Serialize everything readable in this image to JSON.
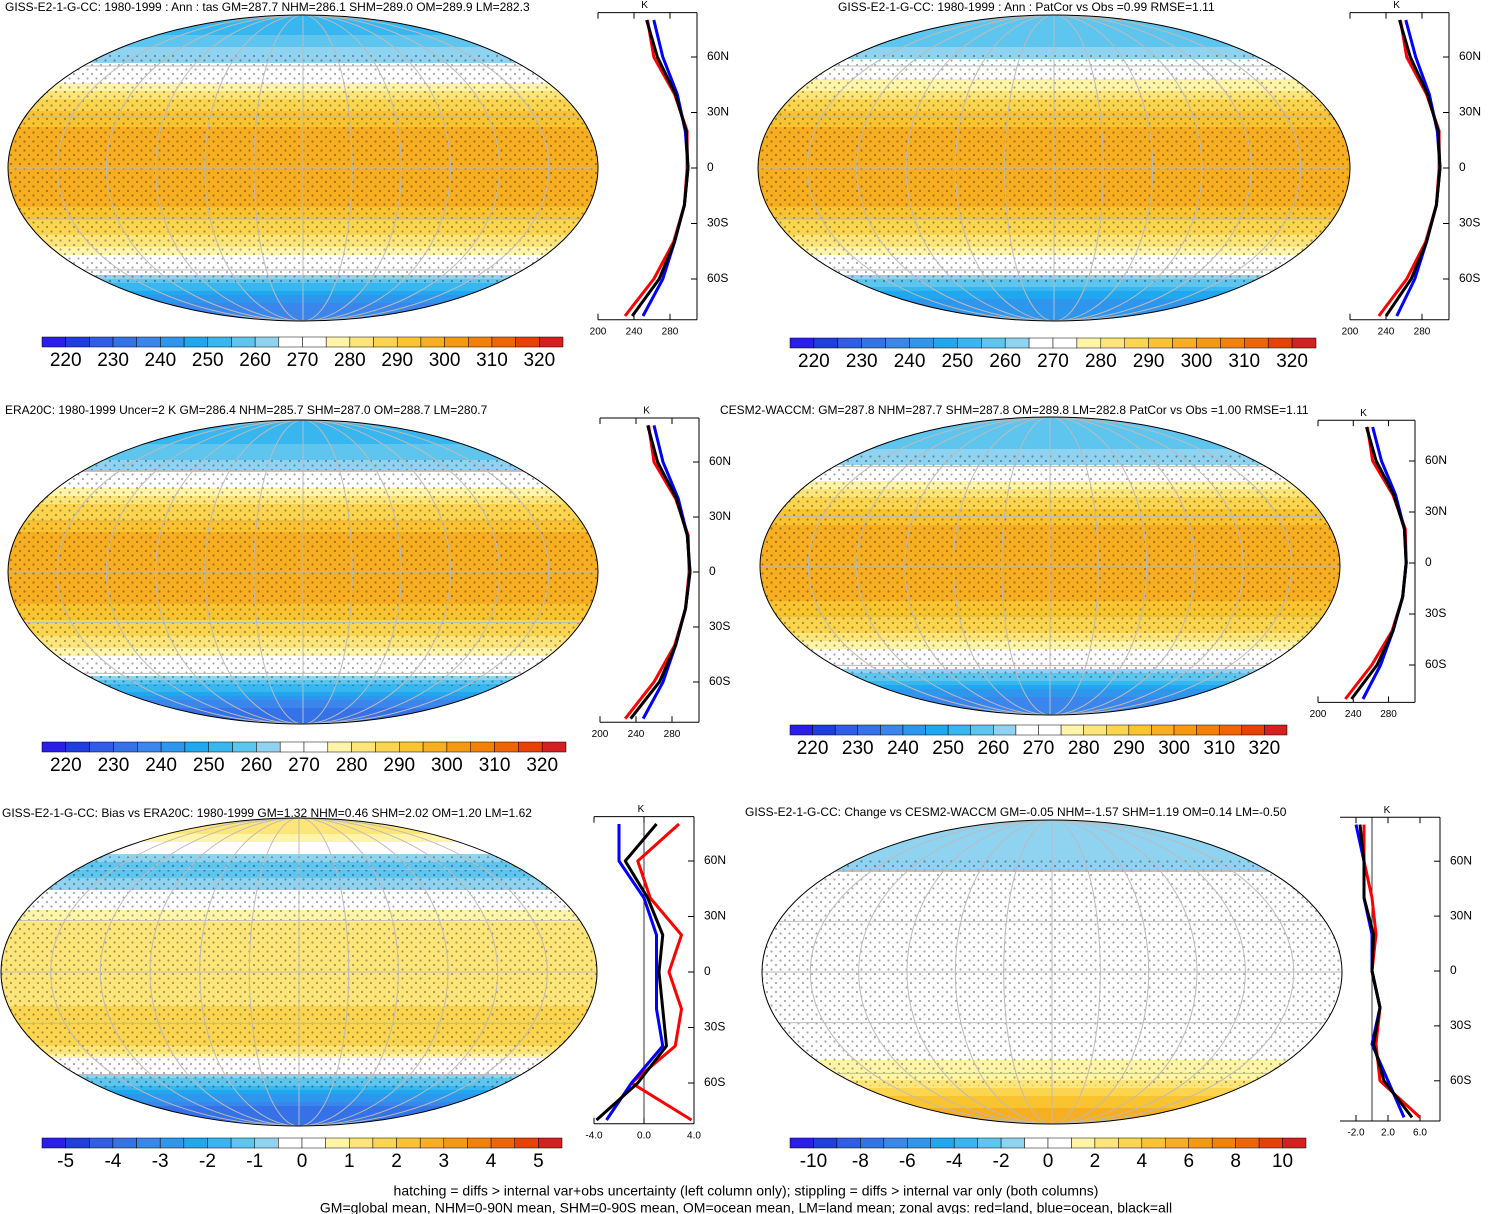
{
  "colormap": [
    "#2a1ee8",
    "#1f3ee0",
    "#2f5de8",
    "#3572e8",
    "#3b86ec",
    "#2f96ee",
    "#1fa8ef",
    "#37b6f0",
    "#5ec5ee",
    "#8fd3f0",
    "#ffffff",
    "#ffffff",
    "#fff4a8",
    "#fde57a",
    "#fbd54f",
    "#f9c430",
    "#f7ae20",
    "#f59a10",
    "#f38108",
    "#ef6504",
    "#e94003",
    "#d61f1f"
  ],
  "chart_data": [
    {
      "type": "map",
      "title": "GISS-E2-1-G-CC: 1980-1999 : Ann : tas GM=287.7 NHM=286.1 SHM=289.0 OM=289.9 LM=282.3",
      "colorbar": {
        "lim": [
          215,
          325
        ],
        "ticks": [
          220,
          230,
          240,
          250,
          260,
          270,
          280,
          290,
          300,
          310,
          320
        ]
      },
      "zonal": {
        "type": "line",
        "unit": "K",
        "y": [
          -80,
          -60,
          -40,
          -20,
          0,
          20,
          40,
          60,
          80
        ],
        "xlim": [
          200,
          310
        ],
        "xticks": [
          200,
          240,
          280
        ],
        "ylim": [
          -82,
          84
        ],
        "yticks": [
          {
            "value": 60,
            "label": "60N"
          },
          {
            "value": 30,
            "label": "30N"
          },
          0,
          {
            "value": -30,
            "label": "30S"
          },
          {
            "value": -60,
            "label": "60S"
          }
        ],
        "series": [
          {
            "color": "#ff0000",
            "values": [
              230,
              262,
              284,
              296,
              299,
              299,
              285,
              262,
              255
            ]
          },
          {
            "color": "#0000ff",
            "values": [
              250,
              272,
              285,
              296,
              300,
              297,
              288,
              272,
              262
            ]
          },
          {
            "color": "#000000",
            "values": [
              238,
              268,
              285,
              296,
              300,
              298,
              286,
              266,
              254
            ]
          }
        ]
      }
    },
    {
      "type": "map",
      "title": "GISS-E2-1-G-CC: 1980-1999 : Ann : PatCor vs Obs =0.99 RMSE=1.11",
      "colorbar": {
        "lim": [
          215,
          325
        ],
        "ticks": [
          220,
          230,
          240,
          250,
          260,
          270,
          280,
          290,
          300,
          310,
          320
        ]
      },
      "zonal": {
        "type": "line",
        "unit": "K",
        "y": [
          -80,
          -60,
          -40,
          -20,
          0,
          20,
          40,
          60,
          80
        ],
        "xlim": [
          200,
          310
        ],
        "xticks": [
          200,
          240,
          280
        ],
        "ylim": [
          -82,
          84
        ],
        "yticks": [
          {
            "value": 60,
            "label": "60N"
          },
          {
            "value": 30,
            "label": "30N"
          },
          0,
          {
            "value": -30,
            "label": "30S"
          },
          {
            "value": -60,
            "label": "60S"
          }
        ],
        "series": [
          {
            "color": "#ff0000",
            "values": [
              232,
              263,
              284,
              296,
              299,
              299,
              285,
              263,
              256
            ]
          },
          {
            "color": "#0000ff",
            "values": [
              252,
              272,
              285,
              296,
              300,
              297,
              288,
              273,
              262
            ]
          },
          {
            "color": "#000000",
            "values": [
              240,
              268,
              285,
              296,
              300,
              298,
              286,
              267,
              255
            ]
          }
        ]
      }
    },
    {
      "type": "map",
      "title": "ERA20C: 1980-1999 Uncer=2 K GM=286.4 NHM=285.7 SHM=287.0 OM=288.7 LM=280.7",
      "colorbar": {
        "lim": [
          215,
          325
        ],
        "ticks": [
          220,
          230,
          240,
          250,
          260,
          270,
          280,
          290,
          300,
          310,
          320
        ]
      },
      "zonal": {
        "type": "line",
        "unit": "K",
        "y": [
          -80,
          -60,
          -40,
          -20,
          0,
          20,
          40,
          60,
          80
        ],
        "xlim": [
          200,
          310
        ],
        "xticks": [
          200,
          240,
          280
        ],
        "ylim": [
          -82,
          84
        ],
        "yticks": [
          {
            "value": 60,
            "label": "60N"
          },
          {
            "value": 30,
            "label": "30N"
          },
          0,
          {
            "value": -30,
            "label": "30S"
          },
          {
            "value": -60,
            "label": "60S"
          }
        ],
        "series": [
          {
            "color": "#ff0000",
            "values": [
              228,
              260,
              283,
              295,
              299,
              298,
              284,
              260,
              254
            ]
          },
          {
            "color": "#0000ff",
            "values": [
              248,
              270,
              284,
              295,
              300,
              297,
              287,
              270,
              260
            ]
          },
          {
            "color": "#000000",
            "values": [
              234,
              266,
              284,
              295,
              300,
              297,
              285,
              264,
              253
            ]
          }
        ]
      }
    },
    {
      "type": "map",
      "title": "CESM2-WACCM: GM=287.8 NHM=287.7 SHM=287.8 OM=289.8 LM=282.8 PatCor vs Obs =1.00 RMSE=1.11",
      "colorbar": {
        "lim": [
          215,
          325
        ],
        "ticks": [
          220,
          230,
          240,
          250,
          260,
          270,
          280,
          290,
          300,
          310,
          320
        ]
      },
      "zonal": {
        "type": "line",
        "unit": "K",
        "y": [
          -80,
          -60,
          -40,
          -20,
          0,
          20,
          40,
          60,
          80
        ],
        "xlim": [
          200,
          310
        ],
        "xticks": [
          200,
          240,
          280
        ],
        "ylim": [
          -82,
          84
        ],
        "yticks": [
          {
            "value": 60,
            "label": "60N"
          },
          {
            "value": 30,
            "label": "30N"
          },
          0,
          {
            "value": -30,
            "label": "30S"
          },
          {
            "value": -60,
            "label": "60S"
          }
        ],
        "series": [
          {
            "color": "#ff0000",
            "values": [
              231,
              261,
              284,
              296,
              300,
              299,
              285,
              262,
              256
            ]
          },
          {
            "color": "#0000ff",
            "values": [
              251,
              271,
              285,
              296,
              300,
              298,
              288,
              272,
              262
            ]
          },
          {
            "color": "#000000",
            "values": [
              238,
              267,
              285,
              296,
              300,
              298,
              286,
              266,
              255
            ]
          }
        ]
      }
    },
    {
      "type": "map",
      "title": "GISS-E2-1-G-CC: Bias vs ERA20C: 1980-1999 GM=1.32 NHM=0.46 SHM=2.02 OM=1.20 LM=1.62",
      "colorbar": {
        "lim": [
          -5.5,
          5.5
        ],
        "ticks": [
          -5,
          -4,
          -3,
          -2,
          -1,
          0,
          1,
          2,
          3,
          4,
          5
        ]
      },
      "zonal": {
        "type": "line",
        "unit": "K",
        "y": [
          -80,
          -60,
          -40,
          -20,
          0,
          20,
          40,
          60,
          80
        ],
        "xlim": [
          -4,
          4
        ],
        "xticks": [
          {
            "value": -4,
            "label": "-4.0"
          },
          {
            "value": 0,
            "label": "0.0"
          },
          {
            "value": 4,
            "label": "4.0"
          }
        ],
        "ylim": [
          -82,
          84
        ],
        "yticks": [
          {
            "value": 60,
            "label": "60N"
          },
          {
            "value": 30,
            "label": "30N"
          },
          0,
          {
            "value": -30,
            "label": "30S"
          },
          {
            "value": -60,
            "label": "60S"
          }
        ],
        "series": [
          {
            "color": "#ff0000",
            "values": [
              3.8,
              -1,
              2.5,
              3,
              2,
              3,
              0.5,
              -0.5,
              2.8
            ]
          },
          {
            "color": "#0000ff",
            "values": [
              -3,
              -1,
              1.5,
              1,
              1,
              1,
              0,
              -2,
              -2
            ]
          },
          {
            "color": "#000000",
            "values": [
              -3.8,
              -0.5,
              1.8,
              1.5,
              1.2,
              1.5,
              0.3,
              -1.5,
              1
            ]
          }
        ]
      }
    },
    {
      "type": "map",
      "title": "GISS-E2-1-G-CC: Change vs CESM2-WACCM GM=-0.05 NHM=-1.57 SHM=1.19 OM=0.14 LM=-0.50",
      "colorbar": {
        "lim": [
          -11,
          11
        ],
        "ticks": [
          -10,
          -8,
          -6,
          -4,
          -2,
          0,
          2,
          4,
          6,
          8,
          10
        ]
      },
      "zonal": {
        "type": "line",
        "unit": "K",
        "y": [
          -80,
          -60,
          -40,
          -20,
          0,
          20,
          40,
          60,
          80
        ],
        "xlim": [
          -4,
          8.5
        ],
        "xticks": [
          {
            "value": -2,
            "label": "-2.0"
          },
          {
            "value": 2,
            "label": "2.0"
          },
          {
            "value": 6,
            "label": "6.0"
          }
        ],
        "ylim": [
          -82,
          84
        ],
        "yticks": [
          {
            "value": 60,
            "label": "60N"
          },
          {
            "value": 30,
            "label": "30N"
          },
          0,
          {
            "value": -30,
            "label": "30S"
          },
          {
            "value": -60,
            "label": "60S"
          }
        ],
        "series": [
          {
            "color": "#ff0000",
            "values": [
              6,
              1,
              0.5,
              1,
              0,
              0.5,
              0,
              -1,
              -1
            ]
          },
          {
            "color": "#0000ff",
            "values": [
              4,
              2,
              0,
              1,
              0,
              0,
              -1,
              -1,
              -2
            ]
          },
          {
            "color": "#000000",
            "values": [
              5,
              1.5,
              0.2,
              1,
              0,
              0.2,
              -1,
              -1,
              -1.5
            ]
          }
        ]
      }
    }
  ],
  "notes": [
    "hatching = diffs > internal var+obs uncertainty (left column only); stippling = diffs > internal var only (both columns)",
    "GM=global mean, NHM=0-90N mean, SHM=0-90S mean, OM=ocean mean, LM=land mean; zonal avgs: red=land, blue=ocean, black=all"
  ]
}
